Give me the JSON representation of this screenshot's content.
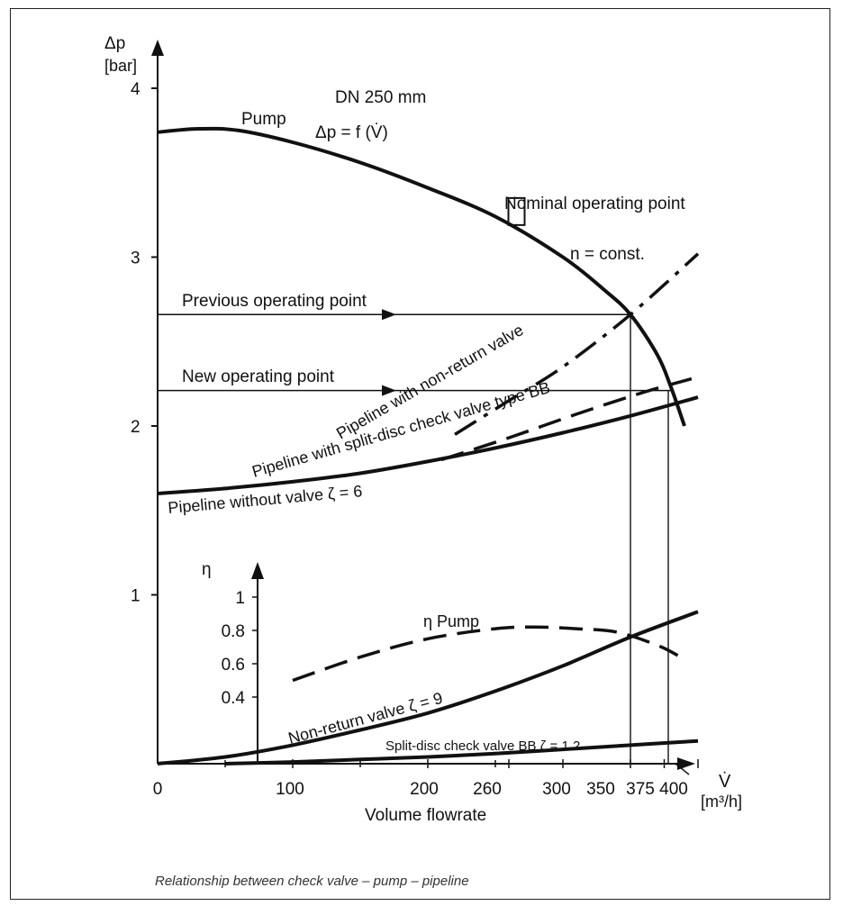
{
  "chart_data": {
    "type": "line",
    "subtitle": "DN 250 mm",
    "caption": "Relationship between check valve – pump – pipeline",
    "axes": {
      "y_top": {
        "label_line1": "Δp",
        "label_line2": "[bar]",
        "ylim": [
          0,
          4
        ],
        "ticks": [
          "4",
          "3",
          "2",
          "1"
        ]
      },
      "x": {
        "label_symbol": "V̇",
        "label_unit": "[m³/h]",
        "title": "Volume flowrate",
        "xlim": [
          0,
          400
        ],
        "ticks": [
          "0",
          "100",
          "200",
          "260",
          "300",
          "350",
          "375",
          "400"
        ]
      },
      "y_eta": {
        "label": "η",
        "ylim": [
          0.2,
          1.0
        ],
        "ticks": [
          "1",
          "0.8",
          "0.6",
          "0.4"
        ]
      }
    },
    "series": [
      {
        "name": "Pump Δp = f (V̇)",
        "axis": "pressure",
        "style": "solid",
        "x": [
          0,
          30,
          60,
          100,
          150,
          200,
          250,
          300,
          330,
          350,
          370,
          380,
          390
        ],
        "y": [
          3.74,
          3.76,
          3.75,
          3.68,
          3.56,
          3.41,
          3.24,
          3.0,
          2.81,
          2.66,
          2.42,
          2.23,
          2.0
        ]
      },
      {
        "name": "Pipeline with non-return valve",
        "axis": "pressure",
        "style": "dashdot",
        "x": [
          220,
          260,
          300,
          350,
          400
        ],
        "y": [
          1.95,
          2.15,
          2.35,
          2.66,
          3.02
        ]
      },
      {
        "name": "Pipeline with split-disc check valve type BB",
        "axis": "pressure",
        "style": "dashed",
        "x": [
          210,
          260,
          310,
          360,
          400
        ],
        "y": [
          1.8,
          1.93,
          2.07,
          2.2,
          2.29
        ]
      },
      {
        "name": "Pipeline without valve ζ = 6",
        "axis": "pressure",
        "style": "solid",
        "x": [
          0,
          50,
          100,
          150,
          200,
          250,
          300,
          350,
          400
        ],
        "y": [
          1.6,
          1.63,
          1.67,
          1.72,
          1.79,
          1.87,
          1.96,
          2.06,
          2.17
        ]
      },
      {
        "name": "η Pump",
        "axis": "eta",
        "style": "dashed",
        "x": [
          100,
          150,
          200,
          250,
          280,
          310,
          340,
          370,
          385
        ],
        "y": [
          0.5,
          0.64,
          0.75,
          0.81,
          0.82,
          0.81,
          0.79,
          0.71,
          0.65
        ]
      },
      {
        "name": "Non-return valve ζ = 9",
        "axis": "pressure",
        "style": "solid",
        "x": [
          0,
          50,
          100,
          150,
          200,
          250,
          300,
          350,
          400
        ],
        "y": [
          0.0,
          0.04,
          0.11,
          0.2,
          0.3,
          0.43,
          0.58,
          0.75,
          0.9
        ]
      },
      {
        "name": "Split-disc check valve BB ζ = 1.2",
        "axis": "pressure",
        "style": "solid",
        "x": [
          50,
          100,
          150,
          200,
          250,
          300,
          350,
          400
        ],
        "y": [
          0.0,
          0.01,
          0.025,
          0.04,
          0.06,
          0.085,
          0.11,
          0.135
        ]
      }
    ],
    "annotations": {
      "pump_label": "Pump",
      "pump_formula": "Δp = f (V̇)",
      "nominal": "Nominal operating point",
      "n_const": "n = const.",
      "previous_op": "Previous operating point",
      "new_op": "New operating point",
      "previous_op_point": {
        "x": 350,
        "y": 2.66
      },
      "new_op_point": {
        "x": 380,
        "y": 2.21
      },
      "nominal_point": {
        "x": 255,
        "y": 3.27
      }
    },
    "curve_labels": {
      "non_return_pipeline": "Pipeline with  non-return valve",
      "split_disc_pipeline": "Pipeline with split-disc check valve type BB",
      "no_valve_pipeline": "Pipeline without valve ζ = 6",
      "eta_pump": "η Pump",
      "non_return_valve": "Non-return valve ζ = 9",
      "split_disc_valve": "Split-disc check valve BB  ζ = 1.2"
    }
  }
}
